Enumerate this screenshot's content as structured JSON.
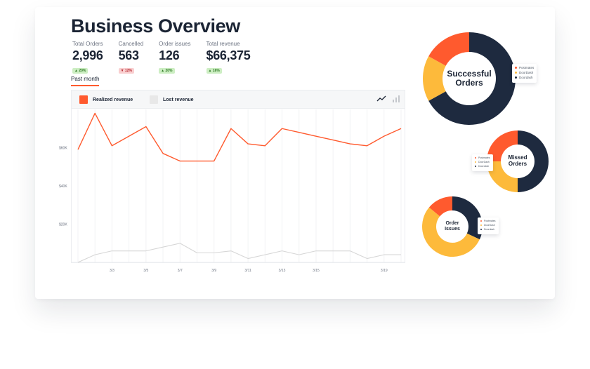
{
  "page": {
    "title": "Business Overview"
  },
  "kpis": [
    {
      "label": "Total Orders",
      "value": "2,996",
      "badge": "▲ 20%",
      "trend": "up"
    },
    {
      "label": "Cancelled",
      "value": "563",
      "badge": "▼ 12%",
      "trend": "down"
    },
    {
      "label": "Order issues",
      "value": "126",
      "badge": "▲ 20%",
      "trend": "up"
    },
    {
      "label": "Total revenue",
      "value": "$66,375",
      "badge": "▲ 16%",
      "trend": "up"
    }
  ],
  "tabs": {
    "active": "Past month"
  },
  "colors": {
    "orange": "#ff5a2e",
    "yellow": "#fdba3b",
    "navy": "#1e2a3f",
    "gray_line": "#d6d6d6",
    "up_green": "#2f7a25",
    "down_red": "#b3262d"
  },
  "icons": {
    "line_chart": "line-chart-icon",
    "bar_chart": "bar-chart-icon"
  },
  "chart_data": [
    {
      "type": "line",
      "x": [
        "3/1",
        "3/2",
        "3/3",
        "3/4",
        "3/5",
        "3/6",
        "3/7",
        "3/8",
        "3/9",
        "3/10",
        "3/11",
        "3/12",
        "3/13",
        "3/14",
        "3/15",
        "3/16",
        "3/17",
        "3/18",
        "3/19",
        "3/20"
      ],
      "x_tick_labels": [
        "3/3",
        "3/5",
        "3/7",
        "3/9",
        "3/11",
        "3/13",
        "3/15",
        "3/19"
      ],
      "y_tick_labels": [
        "$60K",
        "$40K",
        "$20K"
      ],
      "y_ticks": [
        60000,
        40000,
        20000
      ],
      "ylim": [
        0,
        80000
      ],
      "grid": {
        "vertical": true,
        "horizontal": false
      },
      "legend_position": "top-left",
      "series": [
        {
          "name": "Realized revenue",
          "color": "#ff5a2e",
          "values": [
            59000,
            78000,
            61000,
            66000,
            71000,
            57000,
            53000,
            53000,
            53000,
            70000,
            62000,
            61000,
            70000,
            68000,
            66000,
            64000,
            62000,
            61000,
            66000,
            70000
          ]
        },
        {
          "name": "Lost revenue",
          "color": "#e8e8e8",
          "values": [
            0,
            4000,
            6000,
            6000,
            6000,
            8000,
            10000,
            5000,
            5000,
            6000,
            2000,
            4000,
            6000,
            4000,
            6000,
            6000,
            6000,
            2000,
            4000,
            4000
          ]
        }
      ]
    },
    {
      "type": "pie",
      "title": "Successful Orders",
      "categories": [
        "Postmates",
        "DoorDash",
        "Doordash"
      ],
      "values": [
        17,
        16,
        67
      ],
      "colors": [
        "#ff5a2e",
        "#fdba3b",
        "#1e2a3f"
      ],
      "legend_position": "right"
    },
    {
      "type": "pie",
      "title": "Missed Orders",
      "categories": [
        "Postmates",
        "DoorDash",
        "Doordash"
      ],
      "values": [
        25,
        25,
        50
      ],
      "colors": [
        "#ff5a2e",
        "#fdba3b",
        "#1e2a3f"
      ],
      "legend_position": "left"
    },
    {
      "type": "pie",
      "title": "Order Issues",
      "categories": [
        "Postmates",
        "DoorDash",
        "Doordash"
      ],
      "values": [
        14,
        54,
        32
      ],
      "colors": [
        "#ff5a2e",
        "#fdba3b",
        "#1e2a3f"
      ],
      "legend_position": "right"
    }
  ]
}
